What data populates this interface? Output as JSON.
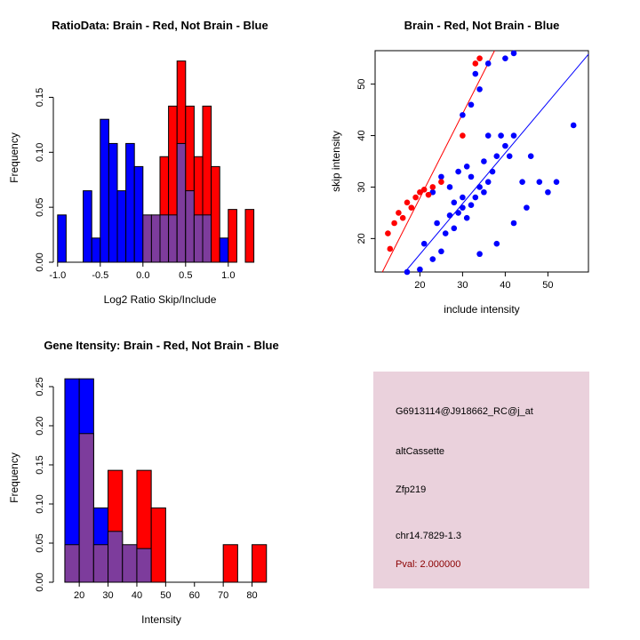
{
  "colors": {
    "red": "#FF0000",
    "blue": "#0000FF",
    "overlap": "#7D3C9C",
    "axis": "#000000",
    "box_bg": "#EAD1DC",
    "pval_text": "#8B0000"
  },
  "chart_data": [
    {
      "type": "bar",
      "subtype": "overlaid-histogram",
      "title": "RatioData: Brain - Red, Not Brain - Blue",
      "xlabel": "Log2 Ratio Skip/Include",
      "ylabel": "Frequency",
      "bin_start": -1.0,
      "bin_width": 0.1,
      "xlim": [
        -1.05,
        1.45
      ],
      "ylim": [
        0,
        0.19
      ],
      "xticks": [
        -1.0,
        -0.5,
        0.0,
        0.5,
        1.0
      ],
      "xtick_labels": [
        "-1.0",
        "-0.5",
        "0.0",
        "0.5",
        "1.0"
      ],
      "yticks": [
        0,
        0.05,
        0.1,
        0.15
      ],
      "ytick_labels": [
        "0.00",
        "0.05",
        "0.10",
        "0.15"
      ],
      "series": [
        {
          "name": "Not Brain",
          "color_key": "blue",
          "values": [
            0.043,
            0,
            0,
            0.065,
            0.022,
            0.13,
            0.108,
            0.065,
            0.108,
            0.087,
            0.043,
            0.043,
            0.043,
            0.043,
            0.108,
            0.065,
            0.043,
            0.043,
            0,
            0.022,
            0,
            0,
            0
          ]
        },
        {
          "name": "Brain",
          "color_key": "red",
          "values": [
            0,
            0,
            0,
            0,
            0,
            0,
            0,
            0,
            0,
            0,
            0.043,
            0.043,
            0.096,
            0.142,
            0.183,
            0.142,
            0.096,
            0.142,
            0.087,
            0,
            0.048,
            0,
            0.048
          ]
        }
      ]
    },
    {
      "type": "scatter",
      "title": "Brain - Red, Not Brain - Blue",
      "xlabel": "include intensity",
      "ylabel": "skip intensity",
      "xlim": [
        9.5,
        59.5
      ],
      "ylim": [
        13.5,
        56.5
      ],
      "xticks": [
        20,
        30,
        40,
        50
      ],
      "xtick_labels": [
        "20",
        "30",
        "40",
        "50"
      ],
      "yticks": [
        20,
        30,
        40,
        50
      ],
      "ytick_labels": [
        "20",
        "30",
        "40",
        "50"
      ],
      "series": [
        {
          "name": "Not Brain",
          "color_key": "blue",
          "points": [
            [
              17,
              13.5
            ],
            [
              20,
              14
            ],
            [
              23,
              16
            ],
            [
              25,
              17.5
            ],
            [
              21,
              19
            ],
            [
              26,
              21
            ],
            [
              28,
              22
            ],
            [
              24,
              23
            ],
            [
              27,
              24.5
            ],
            [
              29,
              25
            ],
            [
              30,
              26
            ],
            [
              31,
              24
            ],
            [
              32,
              26.5
            ],
            [
              30,
              28
            ],
            [
              28,
              27
            ],
            [
              33,
              28
            ],
            [
              34,
              30
            ],
            [
              35,
              29
            ],
            [
              36,
              31
            ],
            [
              32,
              32
            ],
            [
              31,
              34
            ],
            [
              29,
              33
            ],
            [
              35,
              35
            ],
            [
              37,
              33
            ],
            [
              38,
              36
            ],
            [
              40,
              38
            ],
            [
              41,
              36
            ],
            [
              39,
              40
            ],
            [
              42,
              40
            ],
            [
              44,
              31
            ],
            [
              46,
              36
            ],
            [
              48,
              31
            ],
            [
              50,
              29
            ],
            [
              52,
              31
            ],
            [
              56,
              42
            ],
            [
              45,
              26
            ],
            [
              42,
              23
            ],
            [
              38,
              19
            ],
            [
              34,
              17
            ],
            [
              27,
              30
            ],
            [
              25,
              32
            ],
            [
              23,
              29
            ],
            [
              36,
              40
            ],
            [
              30,
              44
            ],
            [
              32,
              46
            ],
            [
              34,
              49
            ],
            [
              36,
              54
            ],
            [
              40,
              55
            ],
            [
              42,
              56
            ],
            [
              33,
              52
            ]
          ]
        },
        {
          "name": "Brain",
          "color_key": "red",
          "points": [
            [
              12.5,
              21
            ],
            [
              13,
              18
            ],
            [
              14,
              23
            ],
            [
              15,
              25
            ],
            [
              16,
              24
            ],
            [
              17,
              27
            ],
            [
              18,
              26
            ],
            [
              19,
              28
            ],
            [
              20,
              29
            ],
            [
              21,
              29.5
            ],
            [
              22,
              28.5
            ],
            [
              25,
              31
            ],
            [
              23,
              30
            ],
            [
              30,
              40
            ],
            [
              33,
              54
            ],
            [
              34,
              55
            ]
          ]
        }
      ],
      "lines": [
        {
          "color_key": "red",
          "x1": 11.2,
          "y1": 13.5,
          "x2": 37.5,
          "y2": 56.5
        },
        {
          "color_key": "blue",
          "x1": 16.5,
          "y1": 13.5,
          "x2": 59.5,
          "y2": 55.8
        }
      ]
    },
    {
      "type": "bar",
      "subtype": "overlaid-histogram",
      "title": "Gene Itensity: Brain - Red, Not Brain - Blue",
      "xlabel": "Intensity",
      "ylabel": "Frequency",
      "bin_start": 15,
      "bin_width": 5,
      "xlim": [
        11,
        86
      ],
      "ylim": [
        0,
        0.267
      ],
      "xticks": [
        20,
        30,
        40,
        50,
        60,
        70,
        80
      ],
      "xtick_labels": [
        "20",
        "30",
        "40",
        "50",
        "60",
        "70",
        "80"
      ],
      "yticks": [
        0,
        0.05,
        0.1,
        0.15,
        0.2,
        0.25
      ],
      "ytick_labels": [
        "0.00",
        "0.05",
        "0.10",
        "0.15",
        "0.20",
        "0.25"
      ],
      "series": [
        {
          "name": "Not Brain",
          "color_key": "blue",
          "values": [
            0.26,
            0.26,
            0.095,
            0.065,
            0.048,
            0.043,
            0,
            0,
            0,
            0,
            0,
            0,
            0,
            0
          ]
        },
        {
          "name": "Brain",
          "color_key": "red",
          "values": [
            0.048,
            0.19,
            0.048,
            0.143,
            0.048,
            0.143,
            0.095,
            0,
            0,
            0,
            0,
            0.048,
            0,
            0.048
          ]
        }
      ]
    }
  ],
  "info_box": {
    "bg": "#EAD1DC",
    "pval_color": "#8B0000",
    "lines": [
      "G6913114@J918662_RC@j_at",
      "altCassette",
      "Zfp219",
      "chr14.7829-1.3",
      "Pval: 2.000000"
    ]
  }
}
